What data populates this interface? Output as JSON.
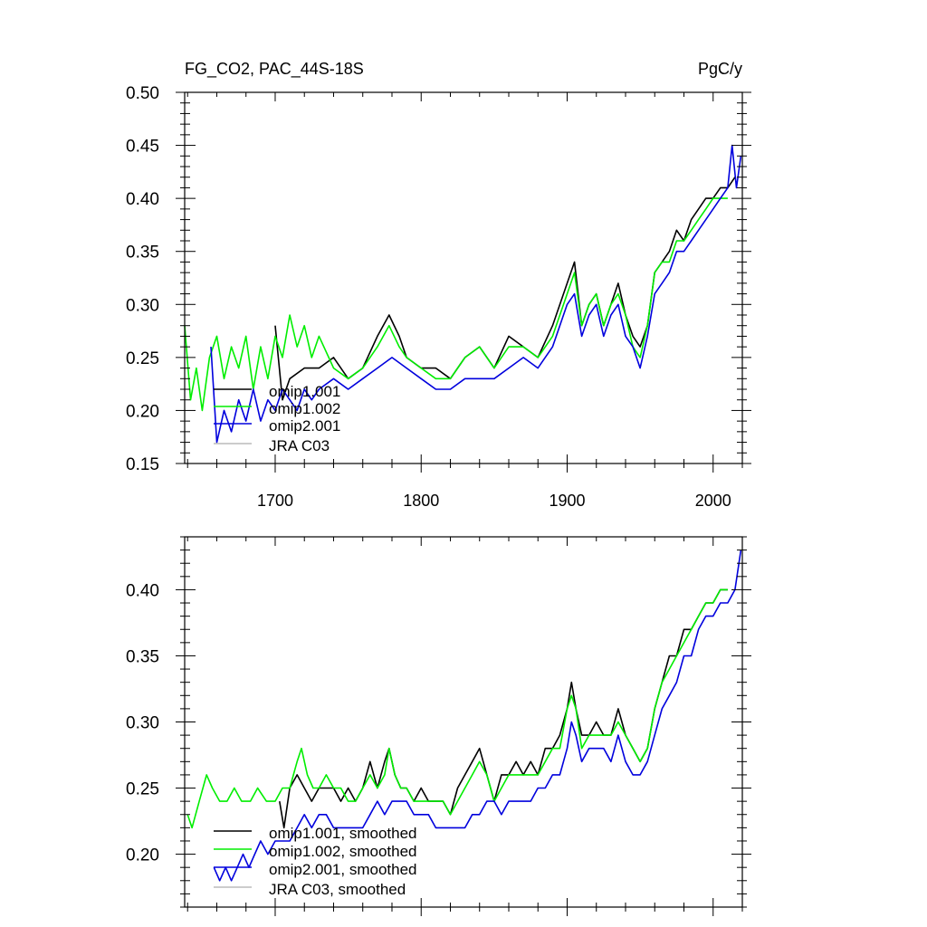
{
  "chart_data": [
    {
      "type": "line",
      "title_left": "FG_CO2, PAC_44S-18S",
      "title_right": "PgC/y",
      "xlim": [
        1638,
        2020
      ],
      "ylim": [
        0.15,
        0.5
      ],
      "x_ticks": [
        1700,
        1800,
        1900,
        2000
      ],
      "x_tick_labels": [
        "1700",
        "1800",
        "1900",
        "2000"
      ],
      "y_ticks": [
        0.15,
        0.2,
        0.25,
        0.3,
        0.35,
        0.4,
        0.45,
        0.5
      ],
      "y_tick_labels": [
        "0.15",
        "0.20",
        "0.25",
        "0.30",
        "0.35",
        "0.40",
        "0.45",
        "0.50"
      ],
      "legend_position": "bottom-left",
      "series": [
        {
          "name": "omip1.001",
          "color": "#000000",
          "x": [
            1700,
            1705,
            1710,
            1720,
            1730,
            1740,
            1750,
            1760,
            1770,
            1778,
            1785,
            1790,
            1800,
            1810,
            1820,
            1830,
            1840,
            1850,
            1860,
            1870,
            1880,
            1890,
            1900,
            1905,
            1910,
            1915,
            1920,
            1925,
            1930,
            1935,
            1940,
            1945,
            1950,
            1955,
            1960,
            1965,
            1970,
            1975,
            1980,
            1985,
            1990,
            1995,
            2000,
            2005,
            2010,
            2015
          ],
          "values": [
            0.28,
            0.21,
            0.23,
            0.24,
            0.24,
            0.25,
            0.23,
            0.24,
            0.27,
            0.29,
            0.27,
            0.25,
            0.24,
            0.24,
            0.23,
            0.25,
            0.26,
            0.24,
            0.27,
            0.26,
            0.25,
            0.28,
            0.32,
            0.34,
            0.28,
            0.3,
            0.31,
            0.28,
            0.3,
            0.32,
            0.29,
            0.27,
            0.26,
            0.28,
            0.33,
            0.34,
            0.35,
            0.37,
            0.36,
            0.38,
            0.39,
            0.4,
            0.4,
            0.41,
            0.41,
            0.42
          ]
        },
        {
          "name": "omip1.002",
          "color": "#00ee00",
          "x": [
            1638,
            1642,
            1646,
            1650,
            1655,
            1660,
            1665,
            1670,
            1675,
            1680,
            1685,
            1690,
            1695,
            1700,
            1705,
            1710,
            1715,
            1720,
            1725,
            1730,
            1740,
            1750,
            1760,
            1770,
            1778,
            1785,
            1790,
            1800,
            1810,
            1820,
            1830,
            1840,
            1850,
            1860,
            1870,
            1880,
            1890,
            1900,
            1905,
            1910,
            1915,
            1920,
            1925,
            1930,
            1935,
            1940,
            1945,
            1950,
            1955,
            1960,
            1965,
            1970,
            1975,
            1980,
            1985,
            1990,
            1995,
            2000,
            2005,
            2010
          ],
          "values": [
            0.28,
            0.21,
            0.24,
            0.2,
            0.25,
            0.27,
            0.23,
            0.26,
            0.24,
            0.27,
            0.22,
            0.26,
            0.23,
            0.27,
            0.25,
            0.29,
            0.26,
            0.28,
            0.25,
            0.27,
            0.24,
            0.23,
            0.24,
            0.26,
            0.28,
            0.26,
            0.25,
            0.24,
            0.23,
            0.23,
            0.25,
            0.26,
            0.24,
            0.26,
            0.26,
            0.25,
            0.27,
            0.31,
            0.33,
            0.28,
            0.3,
            0.31,
            0.28,
            0.3,
            0.31,
            0.29,
            0.26,
            0.25,
            0.28,
            0.33,
            0.34,
            0.34,
            0.36,
            0.36,
            0.37,
            0.38,
            0.39,
            0.4,
            0.4,
            0.4
          ]
        },
        {
          "name": "omip2.001",
          "color": "#0000dd",
          "x": [
            1656,
            1660,
            1665,
            1670,
            1675,
            1680,
            1685,
            1690,
            1695,
            1700,
            1705,
            1710,
            1715,
            1720,
            1725,
            1730,
            1740,
            1750,
            1760,
            1770,
            1780,
            1790,
            1800,
            1810,
            1820,
            1830,
            1840,
            1850,
            1860,
            1870,
            1880,
            1890,
            1900,
            1905,
            1910,
            1915,
            1920,
            1925,
            1930,
            1935,
            1940,
            1945,
            1950,
            1955,
            1960,
            1965,
            1970,
            1975,
            1980,
            1985,
            1990,
            1995,
            2000,
            2005,
            2010,
            2013,
            2016,
            2019
          ],
          "values": [
            0.26,
            0.17,
            0.2,
            0.18,
            0.21,
            0.19,
            0.22,
            0.19,
            0.21,
            0.2,
            0.22,
            0.21,
            0.2,
            0.22,
            0.21,
            0.22,
            0.23,
            0.22,
            0.23,
            0.24,
            0.25,
            0.24,
            0.23,
            0.22,
            0.22,
            0.23,
            0.23,
            0.23,
            0.24,
            0.25,
            0.24,
            0.26,
            0.3,
            0.31,
            0.27,
            0.29,
            0.3,
            0.27,
            0.29,
            0.3,
            0.27,
            0.26,
            0.24,
            0.27,
            0.31,
            0.32,
            0.33,
            0.35,
            0.35,
            0.36,
            0.37,
            0.38,
            0.39,
            0.4,
            0.41,
            0.45,
            0.41,
            0.44
          ]
        },
        {
          "name": "JRA C03",
          "color": "#bbbbbb",
          "x": [],
          "values": []
        }
      ]
    },
    {
      "type": "line",
      "xlim": [
        1638,
        2020
      ],
      "ylim": [
        0.16,
        0.44
      ],
      "x_ticks": [
        1700,
        1800,
        1900,
        2000
      ],
      "y_ticks": [
        0.2,
        0.25,
        0.3,
        0.35,
        0.4
      ],
      "y_tick_labels": [
        "0.20",
        "0.25",
        "0.30",
        "0.35",
        "0.40"
      ],
      "legend_position": "bottom-left",
      "series": [
        {
          "name": "omip1.001, smoothed",
          "color": "#000000",
          "x": [
            1703,
            1706,
            1710,
            1715,
            1720,
            1725,
            1730,
            1735,
            1740,
            1745,
            1750,
            1755,
            1760,
            1765,
            1770,
            1775,
            1778,
            1782,
            1786,
            1790,
            1795,
            1800,
            1805,
            1810,
            1815,
            1820,
            1825,
            1830,
            1835,
            1840,
            1845,
            1850,
            1855,
            1860,
            1865,
            1870,
            1875,
            1880,
            1885,
            1890,
            1895,
            1900,
            1903,
            1906,
            1910,
            1915,
            1920,
            1925,
            1930,
            1935,
            1940,
            1945,
            1950,
            1955,
            1960,
            1965,
            1970,
            1975,
            1980,
            1985,
            1990,
            1995,
            2000,
            2005,
            2010
          ],
          "values": [
            0.24,
            0.22,
            0.25,
            0.26,
            0.25,
            0.24,
            0.25,
            0.25,
            0.25,
            0.24,
            0.25,
            0.24,
            0.25,
            0.27,
            0.25,
            0.27,
            0.28,
            0.26,
            0.25,
            0.25,
            0.24,
            0.25,
            0.24,
            0.24,
            0.24,
            0.23,
            0.25,
            0.26,
            0.27,
            0.28,
            0.26,
            0.24,
            0.26,
            0.26,
            0.27,
            0.26,
            0.27,
            0.26,
            0.28,
            0.28,
            0.29,
            0.31,
            0.33,
            0.31,
            0.29,
            0.29,
            0.3,
            0.29,
            0.29,
            0.31,
            0.29,
            0.28,
            0.27,
            0.28,
            0.31,
            0.33,
            0.35,
            0.35,
            0.37,
            0.37,
            0.38,
            0.39,
            0.39,
            0.4,
            0.4
          ]
        },
        {
          "name": "omip1.002, smoothed",
          "color": "#00ee00",
          "x": [
            1640,
            1643,
            1648,
            1653,
            1657,
            1662,
            1667,
            1672,
            1677,
            1683,
            1688,
            1694,
            1700,
            1705,
            1710,
            1715,
            1718,
            1722,
            1726,
            1730,
            1735,
            1740,
            1745,
            1750,
            1755,
            1760,
            1765,
            1770,
            1775,
            1778,
            1782,
            1786,
            1790,
            1795,
            1800,
            1805,
            1810,
            1815,
            1820,
            1825,
            1830,
            1835,
            1840,
            1845,
            1850,
            1855,
            1860,
            1865,
            1870,
            1875,
            1880,
            1885,
            1890,
            1895,
            1900,
            1903,
            1906,
            1910,
            1915,
            1920,
            1925,
            1930,
            1935,
            1940,
            1945,
            1950,
            1955,
            1960,
            1965,
            1970,
            1975,
            1980,
            1985,
            1990,
            1995,
            2000,
            2005,
            2010
          ],
          "values": [
            0.23,
            0.22,
            0.24,
            0.26,
            0.25,
            0.24,
            0.24,
            0.25,
            0.24,
            0.24,
            0.25,
            0.24,
            0.24,
            0.25,
            0.25,
            0.27,
            0.28,
            0.26,
            0.25,
            0.25,
            0.26,
            0.25,
            0.25,
            0.24,
            0.24,
            0.25,
            0.26,
            0.25,
            0.26,
            0.28,
            0.26,
            0.25,
            0.25,
            0.24,
            0.24,
            0.24,
            0.24,
            0.24,
            0.23,
            0.24,
            0.25,
            0.26,
            0.27,
            0.26,
            0.24,
            0.25,
            0.26,
            0.26,
            0.26,
            0.26,
            0.26,
            0.27,
            0.28,
            0.28,
            0.31,
            0.32,
            0.31,
            0.28,
            0.29,
            0.29,
            0.29,
            0.29,
            0.3,
            0.29,
            0.28,
            0.27,
            0.28,
            0.31,
            0.33,
            0.34,
            0.35,
            0.36,
            0.37,
            0.38,
            0.39,
            0.39,
            0.4,
            0.4
          ]
        },
        {
          "name": "omip2.001, smoothed",
          "color": "#0000dd",
          "x": [
            1658,
            1662,
            1666,
            1670,
            1674,
            1678,
            1682,
            1686,
            1690,
            1695,
            1700,
            1705,
            1710,
            1715,
            1720,
            1725,
            1730,
            1735,
            1740,
            1745,
            1750,
            1755,
            1760,
            1765,
            1770,
            1775,
            1780,
            1785,
            1790,
            1795,
            1800,
            1805,
            1810,
            1815,
            1820,
            1825,
            1830,
            1835,
            1840,
            1845,
            1850,
            1855,
            1860,
            1865,
            1870,
            1875,
            1880,
            1885,
            1890,
            1895,
            1900,
            1903,
            1906,
            1910,
            1915,
            1920,
            1925,
            1930,
            1935,
            1940,
            1945,
            1950,
            1955,
            1960,
            1965,
            1970,
            1975,
            1980,
            1985,
            1990,
            1995,
            2000,
            2005,
            2010,
            2015,
            2019
          ],
          "values": [
            0.19,
            0.18,
            0.19,
            0.18,
            0.19,
            0.2,
            0.19,
            0.2,
            0.21,
            0.2,
            0.21,
            0.21,
            0.21,
            0.22,
            0.23,
            0.22,
            0.23,
            0.23,
            0.22,
            0.22,
            0.22,
            0.22,
            0.22,
            0.23,
            0.24,
            0.23,
            0.24,
            0.24,
            0.24,
            0.23,
            0.23,
            0.23,
            0.22,
            0.22,
            0.22,
            0.22,
            0.22,
            0.23,
            0.23,
            0.24,
            0.24,
            0.23,
            0.24,
            0.24,
            0.24,
            0.24,
            0.25,
            0.25,
            0.26,
            0.26,
            0.28,
            0.3,
            0.29,
            0.27,
            0.28,
            0.28,
            0.28,
            0.27,
            0.29,
            0.27,
            0.26,
            0.26,
            0.27,
            0.29,
            0.31,
            0.32,
            0.33,
            0.35,
            0.35,
            0.37,
            0.38,
            0.38,
            0.39,
            0.39,
            0.4,
            0.43
          ]
        },
        {
          "name": "JRA C03, smoothed",
          "color": "#bbbbbb",
          "x": [],
          "values": []
        }
      ]
    }
  ]
}
